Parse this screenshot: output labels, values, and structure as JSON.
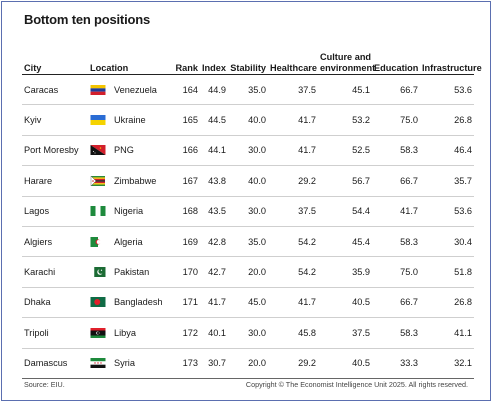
{
  "title": "Bottom ten positions",
  "columns": {
    "city": "City",
    "location": "Location",
    "rank": "Rank",
    "index": "Index",
    "stability": "Stability",
    "healthcare": "Healthcare",
    "culture_line1": "Culture and",
    "culture_line2": "environment",
    "education": "Education",
    "infrastructure": "Infrastructure"
  },
  "rows": [
    {
      "city": "Caracas",
      "country": "Venezuela",
      "flag": "venezuela-flag-icon",
      "rank": "164",
      "index": "44.9",
      "stability": "35.0",
      "healthcare": "37.5",
      "culture": "45.1",
      "education": "66.7",
      "infrastructure": "53.6"
    },
    {
      "city": "Kyiv",
      "country": "Ukraine",
      "flag": "ukraine-flag-icon",
      "rank": "165",
      "index": "44.5",
      "stability": "40.0",
      "healthcare": "41.7",
      "culture": "53.2",
      "education": "75.0",
      "infrastructure": "26.8"
    },
    {
      "city": "Port Moresby",
      "country": "PNG",
      "flag": "png-flag-icon",
      "rank": "166",
      "index": "44.1",
      "stability": "30.0",
      "healthcare": "41.7",
      "culture": "52.5",
      "education": "58.3",
      "infrastructure": "46.4"
    },
    {
      "city": "Harare",
      "country": "Zimbabwe",
      "flag": "zimbabwe-flag-icon",
      "rank": "167",
      "index": "43.8",
      "stability": "40.0",
      "healthcare": "29.2",
      "culture": "56.7",
      "education": "66.7",
      "infrastructure": "35.7"
    },
    {
      "city": "Lagos",
      "country": "Nigeria",
      "flag": "nigeria-flag-icon",
      "rank": "168",
      "index": "43.5",
      "stability": "30.0",
      "healthcare": "37.5",
      "culture": "54.4",
      "education": "41.7",
      "infrastructure": "53.6"
    },
    {
      "city": "Algiers",
      "country": "Algeria",
      "flag": "algeria-flag-icon",
      "rank": "169",
      "index": "42.8",
      "stability": "35.0",
      "healthcare": "54.2",
      "culture": "45.4",
      "education": "58.3",
      "infrastructure": "30.4"
    },
    {
      "city": "Karachi",
      "country": "Pakistan",
      "flag": "pakistan-flag-icon",
      "rank": "170",
      "index": "42.7",
      "stability": "20.0",
      "healthcare": "54.2",
      "culture": "35.9",
      "education": "75.0",
      "infrastructure": "51.8"
    },
    {
      "city": "Dhaka",
      "country": "Bangladesh",
      "flag": "bangladesh-flag-icon",
      "rank": "171",
      "index": "41.7",
      "stability": "45.0",
      "healthcare": "41.7",
      "culture": "40.5",
      "education": "66.7",
      "infrastructure": "26.8"
    },
    {
      "city": "Tripoli",
      "country": "Libya",
      "flag": "libya-flag-icon",
      "rank": "172",
      "index": "40.1",
      "stability": "30.0",
      "healthcare": "45.8",
      "culture": "37.5",
      "education": "58.3",
      "infrastructure": "41.1"
    },
    {
      "city": "Damascus",
      "country": "Syria",
      "flag": "syria-flag-icon",
      "rank": "173",
      "index": "30.7",
      "stability": "20.0",
      "healthcare": "29.2",
      "culture": "40.5",
      "education": "33.3",
      "infrastructure": "32.1"
    }
  ],
  "footer": {
    "source": "Source: EIU.",
    "copyright": "Copyright © The Economist Intelligence Unit 2025. All rights reserved."
  }
}
